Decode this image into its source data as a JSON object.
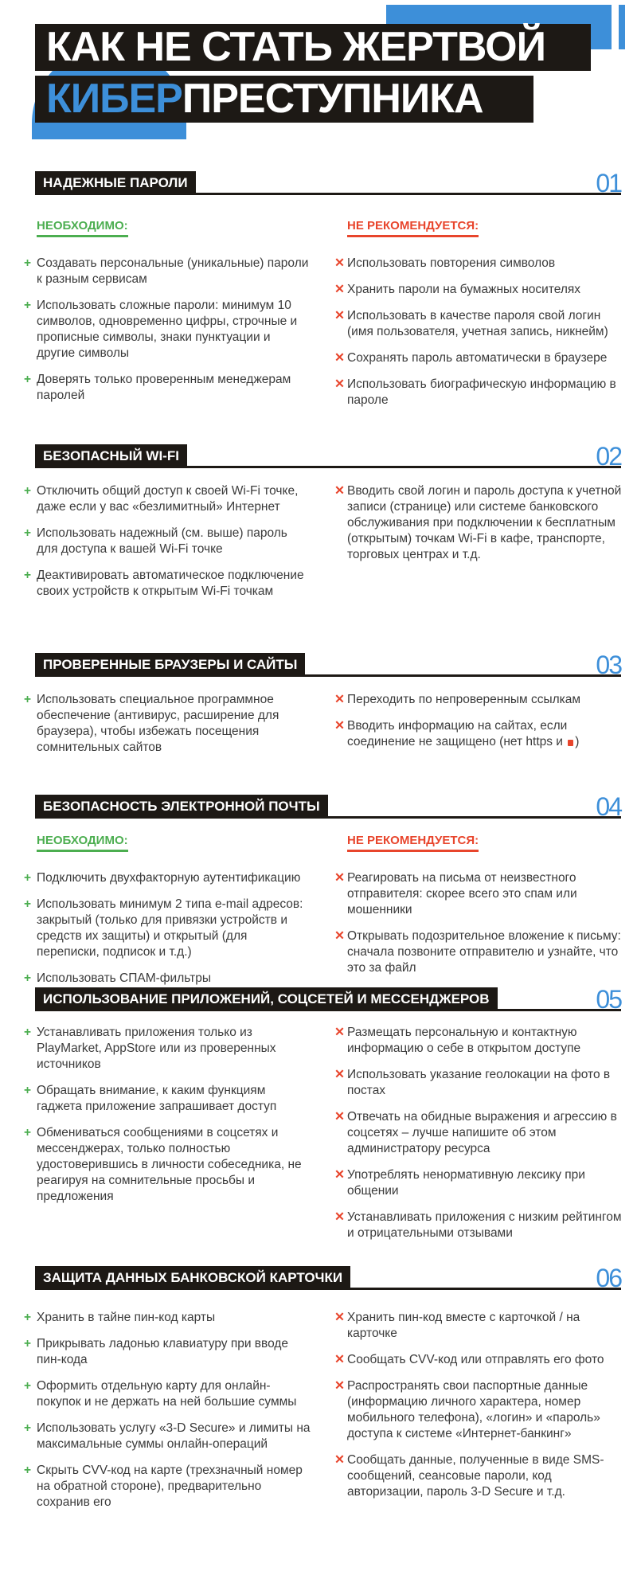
{
  "title": {
    "line1": "КАК НЕ СТАТЬ ЖЕРТВОЙ",
    "line2_blue": "КИБЕР",
    "line2_rest": "ПРЕСТУПНИКА"
  },
  "colors": {
    "accent": "#3d8fd9",
    "do": "#4cae50",
    "dont": "#e8452c",
    "dark": "#1d1915"
  },
  "sections": [
    {
      "title": "НАДЕЖНЫЕ ПАРОЛИ",
      "number": "01",
      "left_heading": "НЕОБХОДИМО:",
      "right_heading": "НЕ РЕКОМЕНДУЕТСЯ:",
      "do": [
        "Создавать персональные (уникальные) пароли к разным сервисам",
        "Использовать сложные пароли: минимум 10 символов, одновременно цифры, строчные и прописные символы, знаки пунктуации и другие символы",
        "Доверять только проверенным менеджерам паролей"
      ],
      "dont": [
        "Использовать повторения символов",
        "Хранить пароли на бумажных носителях",
        "Использовать в качестве пароля свой логин (имя пользователя, учетная запись, никнейм)",
        "Сохранять пароль автоматически в браузере",
        "Использовать биографическую информацию в пароле"
      ]
    },
    {
      "title": "БЕЗОПАСНЫЙ WI-FI",
      "number": "02",
      "do": [
        "Отключить общий доступ к своей Wi-Fi точке, даже если у вас «безлимитный» Интернет",
        "Использовать надежный (см. выше) пароль для доступа к вашей Wi-Fi точке",
        "Деактивировать автоматическое подключение своих устройств к открытым Wi-Fi точкам"
      ],
      "dont": [
        "Вводить свой логин и пароль доступа к учетной записи (странице) или системе банковского обслуживания при подключении к бесплатным (открытым) точкам Wi-Fi в кафе, транспорте, торговых центрах и т.д."
      ]
    },
    {
      "title": "ПРОВЕРЕННЫЕ БРАУЗЕРЫ И САЙТЫ",
      "number": "03",
      "do": [
        "Использовать специальное программное обеспечение (антивирус, расширение для браузера), чтобы избежать посещения сомнительных сайтов"
      ],
      "dont": [
        "Переходить по непроверенным ссылкам",
        "Вводить информацию на сайтах, если соединение не защищено (нет https и"
      ],
      "dont_suffix": ")"
    },
    {
      "title": "БЕЗОПАСНОСТЬ ЭЛЕКТРОННОЙ ПОЧТЫ",
      "number": "04",
      "left_heading": "НЕОБХОДИМО:",
      "right_heading": "НЕ РЕКОМЕНДУЕТСЯ:",
      "do": [
        "Подключить двухфакторную аутентификацию",
        "Использовать минимум 2 типа e-mail адресов: закрытый (только для привязки устройств и средств их защиты) и открытый (для переписки, подписок и т.д.)",
        "Использовать СПАМ-фильтры"
      ],
      "dont": [
        "Реагировать на письма от неизвестного отправителя: скорее всего это спам или мошенники",
        "Открывать подозрительное вложение к письму: сначала позвоните отправителю и узнайте, что это за файл"
      ]
    },
    {
      "title": "ИСПОЛЬЗОВАНИЕ ПРИЛОЖЕНИЙ, СОЦСЕТЕЙ И МЕССЕНДЖЕРОВ",
      "number": "05",
      "do": [
        "Устанавливать приложения только из PlayMarket, AppStore или из проверенных источников",
        "Обращать внимание, к каким функциям гаджета приложение запрашивает доступ",
        "Обмениваться сообщениями в соцсетях и мессенджерах, только полностью удостоверившись в личности собеседника, не реагируя на сомнительные просьбы и предложения"
      ],
      "dont": [
        "Размещать персональную и контактную информацию о себе в открытом доступе",
        "Использовать указание геолокации на фото в постах",
        "Отвечать на обидные выражения и агрессию в соцсетях – лучше напишите об этом администратору ресурса",
        "Употреблять ненормативную лексику при общении",
        "Устанавливать приложения с низким рейтингом и отрицательными отзывами"
      ]
    },
    {
      "title": "ЗАЩИТА ДАННЫХ БАНКОВСКОЙ КАРТОЧКИ",
      "number": "06",
      "do": [
        "Хранить в тайне пин-код карты",
        "Прикрывать ладонью клавиатуру при вводе пин-кода",
        "Оформить отдельную карту для онлайн-покупок и не держать на ней большие суммы",
        "Использовать услугу «3-D Secure» и лимиты на максимальные суммы онлайн-операций",
        "Скрыть CVV-код на карте (трехзначный номер на обратной стороне), предварительно сохранив его"
      ],
      "dont": [
        "Хранить пин-код вместе с карточкой / на карточке",
        "Сообщать CVV-код или отправлять его фото",
        "Распространять свои паспортные данные (информацию личного характера, номер мобильного телефона), «логин» и «пароль» доступа к системе «Интернет-банкинг»",
        "Сообщать данные, полученные в виде SMS-сообщений, сеансовые пароли, код авторизации, пароль 3-D Secure и т.д."
      ]
    }
  ]
}
